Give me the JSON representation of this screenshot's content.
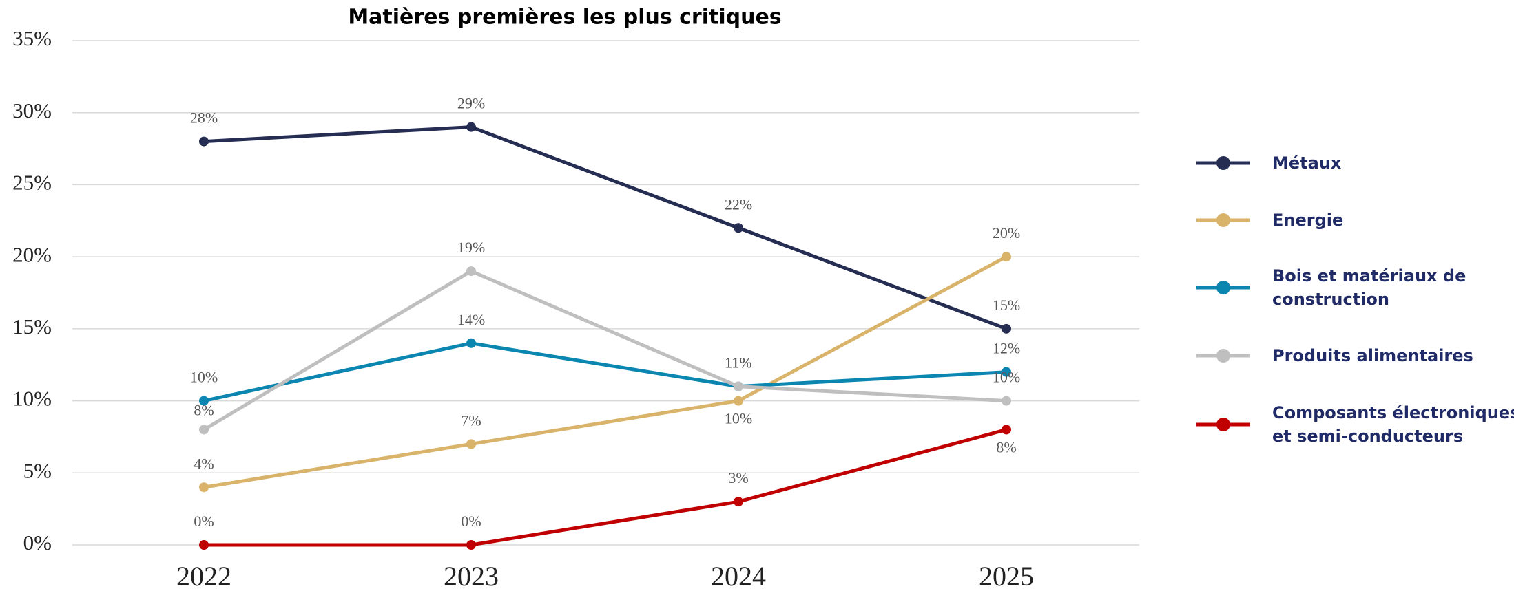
{
  "chart_data": {
    "type": "line",
    "title": "Matières premières les plus critiques",
    "categories": [
      "2022",
      "2023",
      "2024",
      "2025"
    ],
    "ylim": [
      0,
      35
    ],
    "yticks": [
      {
        "value": 0,
        "label": "0%"
      },
      {
        "value": 5,
        "label": "5%"
      },
      {
        "value": 10,
        "label": "10%"
      },
      {
        "value": 15,
        "label": "15%"
      },
      {
        "value": 20,
        "label": "20%"
      },
      {
        "value": 25,
        "label": "25%"
      },
      {
        "value": 30,
        "label": "30%"
      },
      {
        "value": 35,
        "label": "35%"
      }
    ],
    "grid": true,
    "legend": "right",
    "series": [
      {
        "name": "Métaux",
        "color": "#252d52",
        "values": [
          28,
          29,
          22,
          15
        ],
        "value_labels": [
          "28%",
          "29%",
          "22%",
          "15%"
        ]
      },
      {
        "name": "Energie",
        "color": "#d9b36a",
        "values": [
          4,
          7,
          10,
          20
        ],
        "value_labels": [
          "4%",
          "7%",
          "10%",
          "20%"
        ]
      },
      {
        "name": "Bois et matériaux de construction",
        "color": "#0a86b0",
        "values": [
          10,
          14,
          11,
          12
        ],
        "value_labels": [
          "10%",
          "14%",
          "11%",
          "12%"
        ]
      },
      {
        "name": "Produits alimentaires",
        "color": "#bfbfbf",
        "values": [
          8,
          19,
          11,
          10
        ],
        "value_labels": [
          "8%",
          "19%",
          "11%",
          "10%"
        ]
      },
      {
        "name": "Composants électroniques et semi-conducteurs",
        "color": "#c00000",
        "values": [
          0,
          0,
          3,
          8
        ],
        "value_labels": [
          "0%",
          "0%",
          "3%",
          "8%"
        ]
      }
    ]
  }
}
